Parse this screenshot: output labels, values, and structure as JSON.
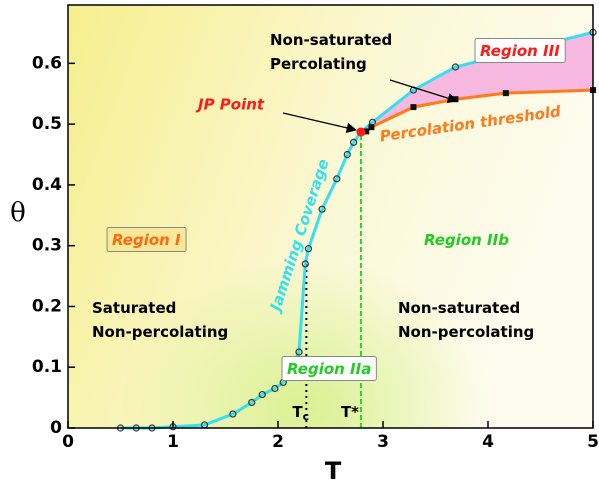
{
  "chart_data": {
    "type": "line",
    "xlabel": "T",
    "ylabel": "θ",
    "xlim": [
      0,
      5
    ],
    "ylim": [
      0,
      0.696
    ],
    "xticks": [
      0,
      1,
      2,
      3,
      4,
      5
    ],
    "yticks": [
      0,
      0.1,
      0.2,
      0.3,
      0.4,
      0.5,
      0.6
    ],
    "series": [
      {
        "name": "Jamming Coverage",
        "color": "#33e0f0",
        "marker": "circle",
        "x": [
          0.5,
          0.65,
          0.8,
          1.0,
          1.3,
          1.57,
          1.75,
          1.85,
          1.97,
          2.05,
          2.2,
          2.26,
          2.29,
          2.42,
          2.56,
          2.66,
          2.72,
          2.79,
          2.9,
          3.29,
          3.69,
          5.0
        ],
        "values": [
          0,
          0,
          0,
          0.002,
          0.005,
          0.023,
          0.042,
          0.055,
          0.065,
          0.075,
          0.125,
          0.27,
          0.295,
          0.36,
          0.41,
          0.45,
          0.47,
          0.487,
          0.503,
          0.556,
          0.594,
          0.651
        ]
      },
      {
        "name": "Percolation threshold",
        "color": "#ff7a1a",
        "marker": "square",
        "x": [
          2.79,
          2.84,
          2.89,
          3.29,
          3.69,
          4.17,
          5.0
        ],
        "values": [
          0.487,
          0.488,
          0.495,
          0.528,
          0.541,
          0.551,
          0.556
        ]
      }
    ],
    "jp_point": {
      "label": "JP Point",
      "x": 2.79,
      "y": 0.487,
      "color": "#ff1a1a"
    },
    "thresholds": [
      {
        "label": "T",
        "sub": "c",
        "x": 2.27,
        "y": 0.27,
        "color": "#000000"
      },
      {
        "label": "T*",
        "x": 2.79,
        "y": 0.487,
        "color": "#22dd22"
      }
    ],
    "annotations": [
      {
        "lines": [
          "Region I"
        ],
        "color": "#ff6a10"
      },
      {
        "lines": [
          "Region IIa"
        ],
        "color": "#22cc22"
      },
      {
        "lines": [
          "Region IIb"
        ],
        "color": "#22cc22"
      },
      {
        "lines": [
          "Region III"
        ],
        "color": "#ff1a1a"
      },
      {
        "lines": [
          "Saturated",
          "Non-percolating"
        ],
        "color": "#000000"
      },
      {
        "lines": [
          "Non-saturated",
          "Non-percolating"
        ],
        "color": "#000000"
      },
      {
        "lines": [
          "Non-saturated",
          "Percolating"
        ],
        "color": "#000000"
      }
    ]
  }
}
